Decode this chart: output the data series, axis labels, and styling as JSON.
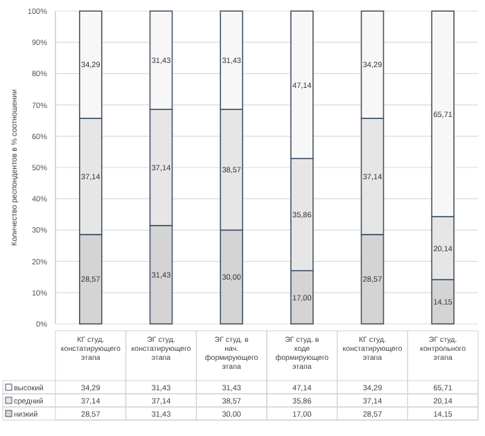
{
  "chart_data": {
    "type": "bar",
    "stacked": true,
    "ylabel": "Количество респондентов в % соотношении",
    "categories": [
      "КГ студ. констатирующего этапа",
      "ЭГ студ. констатирующего этапа",
      "ЭГ студ. в нач. формирующего этапа",
      "ЭГ студ. в ходе формирующего этапа",
      "КГ студ. констатирующего этапа",
      "ЭГ студ. контрольного этапа"
    ],
    "series": [
      {
        "name": "низкий",
        "color": "#d4d4d4",
        "values": [
          28.57,
          31.43,
          30.0,
          17.0,
          28.57,
          14.15
        ],
        "value_labels": [
          "28,57",
          "31,43",
          "30,00",
          "17,00",
          "28,57",
          "14,15"
        ]
      },
      {
        "name": "средний",
        "color": "#e6e6e6",
        "values": [
          37.14,
          37.14,
          38.57,
          35.86,
          37.14,
          20.14
        ],
        "value_labels": [
          "37,14",
          "37,14",
          "38,57",
          "35,86",
          "37,14",
          "20,14"
        ]
      },
      {
        "name": "высокий",
        "color": "#f7f7f7",
        "values": [
          34.29,
          31.43,
          31.43,
          47.14,
          34.29,
          65.71
        ],
        "value_labels": [
          "34,29",
          "31,43",
          "31,43",
          "47,14",
          "34,29",
          "65,71"
        ]
      }
    ],
    "ylim": [
      0,
      100
    ],
    "yticks": [
      {
        "value": 0,
        "label": "0%"
      },
      {
        "value": 10,
        "label": "10%"
      },
      {
        "value": 20,
        "label": "20%"
      },
      {
        "value": 30,
        "label": "30%"
      },
      {
        "value": 40,
        "label": "40%"
      },
      {
        "value": 50,
        "label": "50%"
      },
      {
        "value": 60,
        "label": "60%"
      },
      {
        "value": 70,
        "label": "70%"
      },
      {
        "value": 80,
        "label": "80%"
      },
      {
        "value": 90,
        "label": "90%"
      },
      {
        "value": 100,
        "label": "100%"
      }
    ],
    "grid": "y",
    "legend": "bottom"
  }
}
